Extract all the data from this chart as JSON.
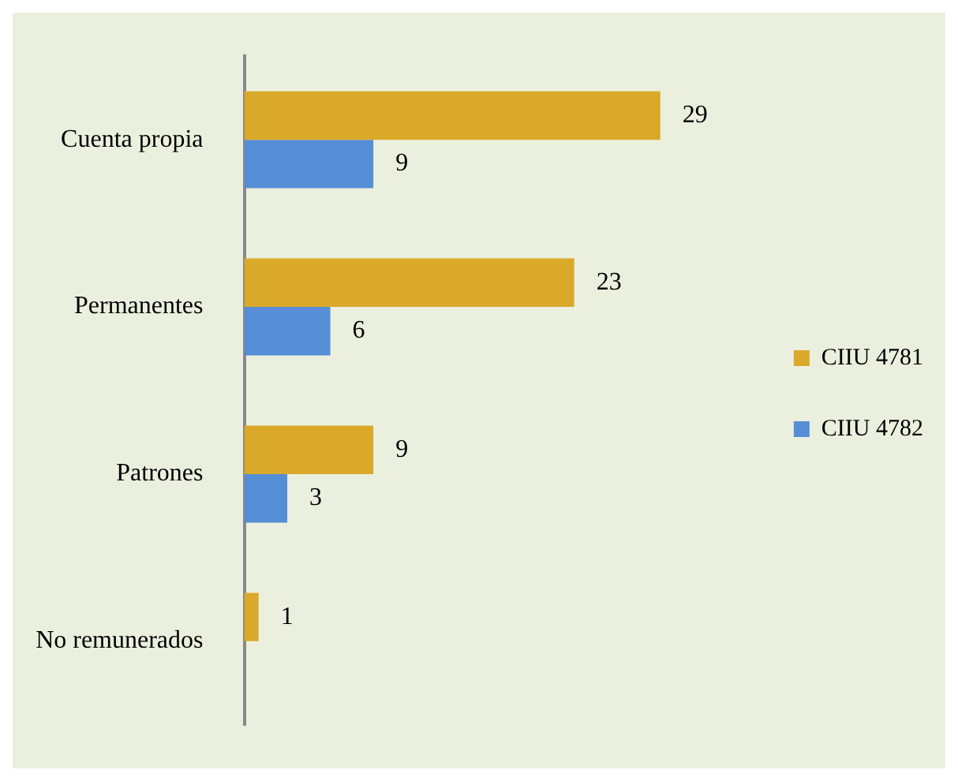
{
  "chart_data": {
    "type": "bar",
    "orientation": "horizontal",
    "categories": [
      "Cuenta propia",
      "Permanentes",
      "Patrones",
      "No remunerados"
    ],
    "series": [
      {
        "name": "CIIU 4781",
        "color": "#daa92a",
        "values": [
          29,
          23,
          9,
          1
        ]
      },
      {
        "name": "CIIU 4782",
        "color": "#558ed5",
        "values": [
          9,
          6,
          3,
          null
        ]
      }
    ],
    "data_labels": true,
    "legend": "right"
  }
}
